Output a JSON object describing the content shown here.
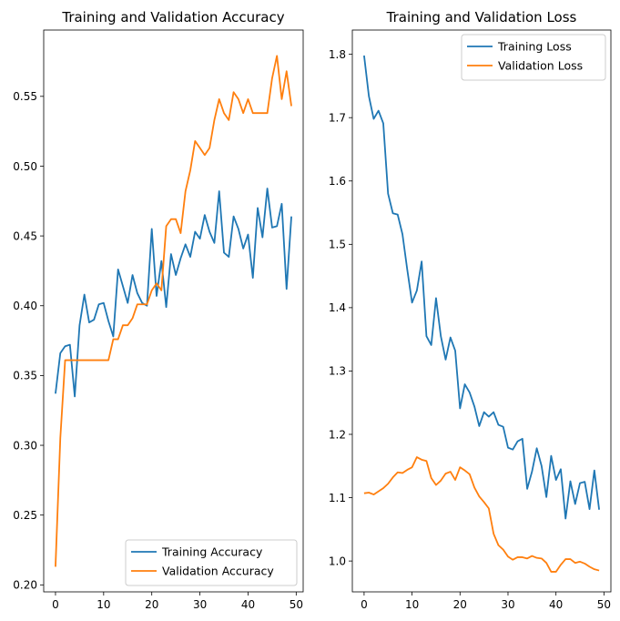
{
  "chart_data": [
    {
      "type": "line",
      "title": "Training and Validation Accuracy",
      "xlabel": "",
      "ylabel": "",
      "xlim": [
        -2.45,
        51.45
      ],
      "ylim": [
        0.195,
        0.5975
      ],
      "xticks": [
        0,
        10,
        20,
        30,
        40,
        50
      ],
      "yticks": [
        0.2,
        0.25,
        0.3,
        0.35,
        0.4,
        0.45,
        0.5,
        0.55
      ],
      "ytick_labels": [
        "0.20",
        "0.25",
        "0.30",
        "0.35",
        "0.40",
        "0.45",
        "0.50",
        "0.55"
      ],
      "grid": false,
      "legend_position": "lower-right",
      "x": [
        0,
        1,
        2,
        3,
        4,
        5,
        6,
        7,
        8,
        9,
        10,
        11,
        12,
        13,
        14,
        15,
        16,
        17,
        18,
        19,
        20,
        21,
        22,
        23,
        24,
        25,
        26,
        27,
        28,
        29,
        30,
        31,
        32,
        33,
        34,
        35,
        36,
        37,
        38,
        39,
        40,
        41,
        42,
        43,
        44,
        45,
        46,
        47,
        48,
        49
      ],
      "series": [
        {
          "name": "Training Accuracy",
          "color": "#1f77b4",
          "values": [
            0.337,
            0.366,
            0.371,
            0.372,
            0.335,
            0.386,
            0.408,
            0.388,
            0.39,
            0.401,
            0.402,
            0.389,
            0.378,
            0.426,
            0.414,
            0.402,
            0.422,
            0.409,
            0.402,
            0.4,
            0.455,
            0.407,
            0.432,
            0.399,
            0.437,
            0.422,
            0.434,
            0.444,
            0.435,
            0.453,
            0.448,
            0.465,
            0.453,
            0.445,
            0.482,
            0.438,
            0.435,
            0.464,
            0.455,
            0.441,
            0.451,
            0.42,
            0.47,
            0.449,
            0.484,
            0.456,
            0.457,
            0.473,
            0.412,
            0.464
          ]
        },
        {
          "name": "Validation Accuracy",
          "color": "#ff7f0e",
          "values": [
            0.213,
            0.305,
            0.361,
            0.361,
            0.361,
            0.361,
            0.361,
            0.361,
            0.361,
            0.361,
            0.361,
            0.361,
            0.376,
            0.376,
            0.386,
            0.386,
            0.391,
            0.401,
            0.401,
            0.401,
            0.411,
            0.416,
            0.411,
            0.457,
            0.462,
            0.462,
            0.452,
            0.482,
            0.497,
            0.518,
            0.513,
            0.508,
            0.513,
            0.533,
            0.548,
            0.538,
            0.533,
            0.553,
            0.548,
            0.538,
            0.548,
            0.538,
            0.538,
            0.538,
            0.538,
            0.563,
            0.579,
            0.548,
            0.568,
            0.543
          ]
        }
      ]
    },
    {
      "type": "line",
      "title": "Training and Validation Loss",
      "xlabel": "",
      "ylabel": "",
      "xlim": [
        -2.45,
        51.45
      ],
      "ylim": [
        0.9513,
        1.8383
      ],
      "xticks": [
        0,
        10,
        20,
        30,
        40,
        50
      ],
      "yticks": [
        1.0,
        1.1,
        1.2,
        1.3,
        1.4,
        1.5,
        1.6,
        1.7,
        1.8
      ],
      "ytick_labels": [
        "1.0",
        "1.1",
        "1.2",
        "1.3",
        "1.4",
        "1.5",
        "1.6",
        "1.7",
        "1.8"
      ],
      "grid": false,
      "legend_position": "upper-right",
      "x": [
        0,
        1,
        2,
        3,
        4,
        5,
        6,
        7,
        8,
        9,
        10,
        11,
        12,
        13,
        14,
        15,
        16,
        17,
        18,
        19,
        20,
        21,
        22,
        23,
        24,
        25,
        26,
        27,
        28,
        29,
        30,
        31,
        32,
        33,
        34,
        35,
        36,
        37,
        38,
        39,
        40,
        41,
        42,
        43,
        44,
        45,
        46,
        47,
        48,
        49
      ],
      "series": [
        {
          "name": "Training Loss",
          "color": "#1f77b4",
          "values": [
            1.798,
            1.734,
            1.698,
            1.711,
            1.691,
            1.58,
            1.549,
            1.547,
            1.516,
            1.46,
            1.408,
            1.427,
            1.473,
            1.355,
            1.341,
            1.415,
            1.355,
            1.318,
            1.353,
            1.332,
            1.241,
            1.279,
            1.266,
            1.244,
            1.213,
            1.235,
            1.228,
            1.235,
            1.215,
            1.212,
            1.179,
            1.176,
            1.189,
            1.193,
            1.114,
            1.141,
            1.178,
            1.15,
            1.101,
            1.166,
            1.128,
            1.145,
            1.067,
            1.126,
            1.09,
            1.123,
            1.125,
            1.082,
            1.143,
            1.081
          ]
        },
        {
          "name": "Validation Loss",
          "color": "#ff7f0e",
          "values": [
            1.107,
            1.108,
            1.105,
            1.11,
            1.115,
            1.122,
            1.132,
            1.14,
            1.139,
            1.144,
            1.148,
            1.164,
            1.16,
            1.158,
            1.131,
            1.12,
            1.127,
            1.138,
            1.141,
            1.128,
            1.148,
            1.143,
            1.137,
            1.116,
            1.102,
            1.093,
            1.083,
            1.043,
            1.025,
            1.018,
            1.007,
            1.002,
            1.006,
            1.006,
            1.004,
            1.008,
            1.005,
            1.004,
            0.997,
            0.983,
            0.983,
            0.994,
            1.003,
            1.003,
            0.997,
            0.999,
            0.996,
            0.991,
            0.987,
            0.985
          ]
        }
      ]
    }
  ]
}
